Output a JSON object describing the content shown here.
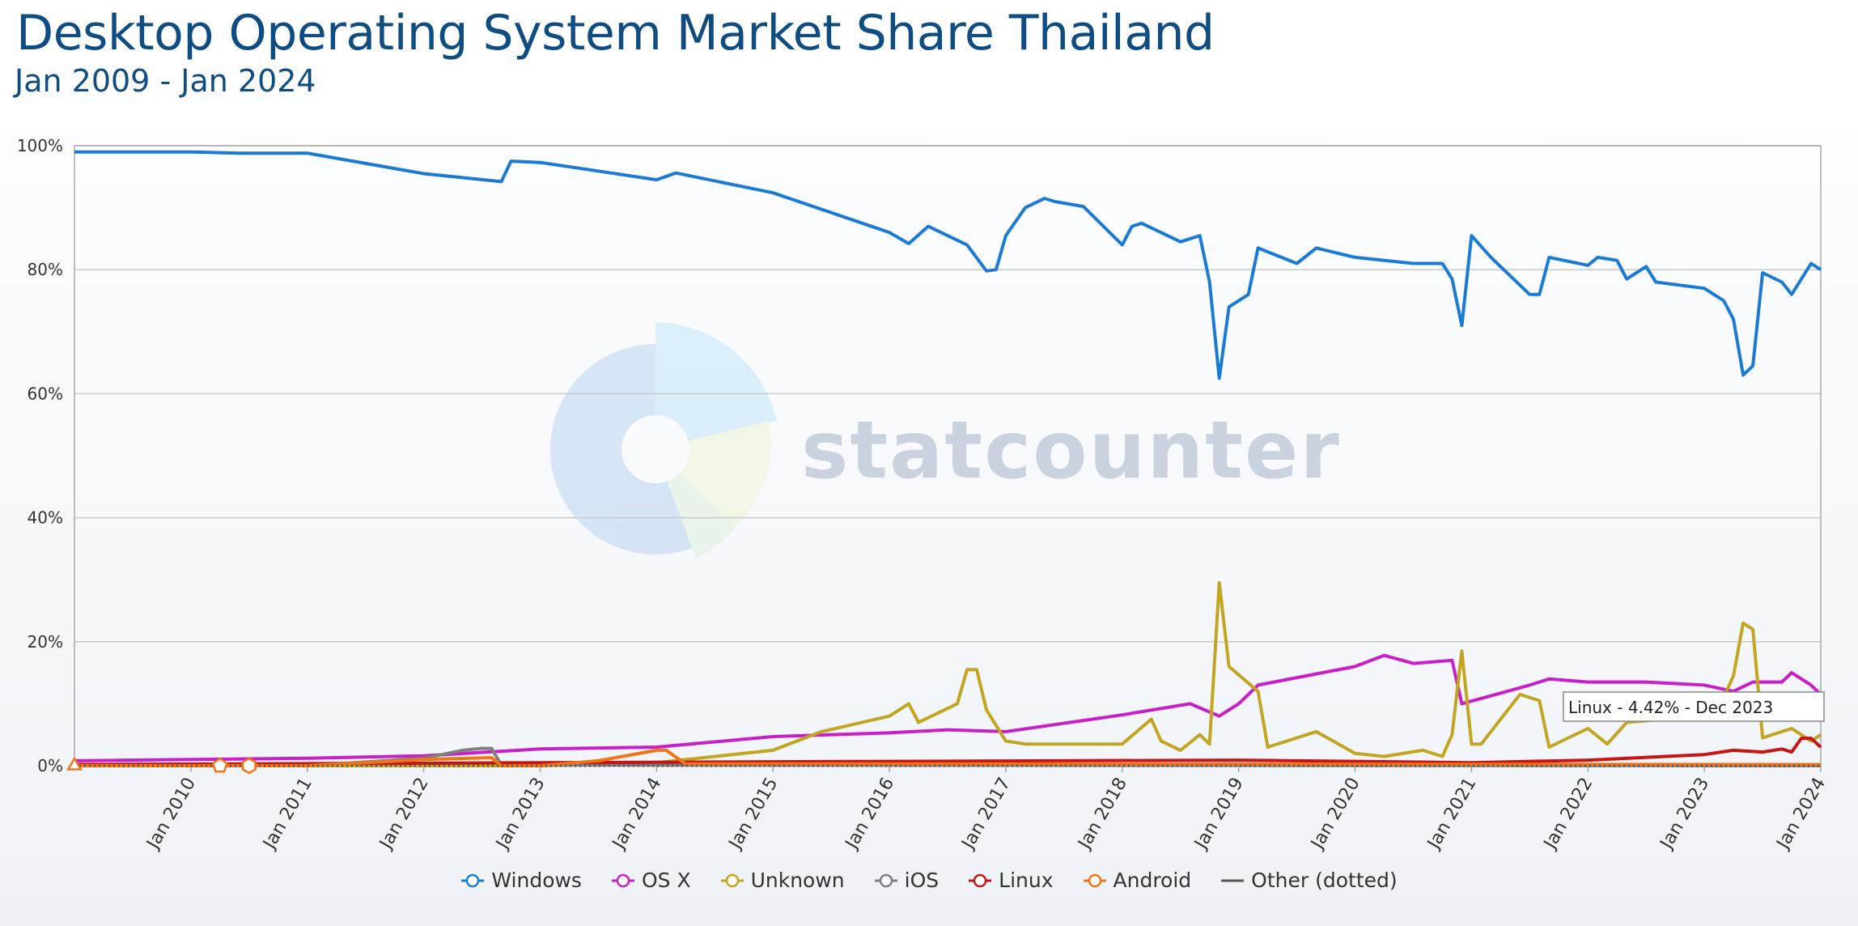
{
  "header": {
    "title": "Desktop Operating System Market Share Thailand",
    "subtitle": "Jan 2009 - Jan 2024"
  },
  "watermark": {
    "text": "statcounter"
  },
  "tooltip": {
    "text": "Linux - 4.42% - Dec 2023"
  },
  "legend": [
    {
      "name": "Windows",
      "color": "#1b7bd4"
    },
    {
      "name": "OS X",
      "color": "#c81fc8"
    },
    {
      "name": "Unknown",
      "color": "#c2a521"
    },
    {
      "name": "iOS",
      "color": "#7f7f7f"
    },
    {
      "name": "Linux",
      "color": "#c81414"
    },
    {
      "name": "Android",
      "color": "#f07518"
    },
    {
      "name": "Other (dotted)",
      "color": "#555555"
    }
  ],
  "chart_data": {
    "type": "line",
    "x_start": "Jan 2009",
    "x_end": "Jan 2024",
    "x_ticks": [
      "Jan 2010",
      "Jan 2011",
      "Jan 2012",
      "Jan 2013",
      "Jan 2014",
      "Jan 2015",
      "Jan 2016",
      "Jan 2017",
      "Jan 2018",
      "Jan 2019",
      "Jan 2020",
      "Jan 2021",
      "Jan 2022",
      "Jan 2023",
      "Jan 2024"
    ],
    "y_ticks": [
      "0%",
      "20%",
      "40%",
      "60%",
      "80%",
      "100%"
    ],
    "ylim": [
      0,
      100
    ],
    "grid": true,
    "series": [
      {
        "name": "Windows",
        "color": "#1b7bd4",
        "points": [
          [
            "Jan 2009",
            99
          ],
          [
            "Jan 2010",
            99
          ],
          [
            "Jun 2010",
            98.8
          ],
          [
            "Jan 2011",
            98.8
          ],
          [
            "Jan 2012",
            95.5
          ],
          [
            "Sep 2012",
            94.2
          ],
          [
            "Oct 2012",
            97.5
          ],
          [
            "Jan 2013",
            97.3
          ],
          [
            "Jan 2014",
            94.5
          ],
          [
            "Mar 2014",
            95.6
          ],
          [
            "Jan 2015",
            92.4
          ],
          [
            "Jan 2016",
            86
          ],
          [
            "Mar 2016",
            84.2
          ],
          [
            "May 2016",
            87
          ],
          [
            "Sep 2016",
            84
          ],
          [
            "Nov 2016",
            79.8
          ],
          [
            "Dec 2016",
            80
          ],
          [
            "Jan 2017",
            85.5
          ],
          [
            "Mar 2017",
            90
          ],
          [
            "May 2017",
            91.5
          ],
          [
            "Jun 2017",
            91
          ],
          [
            "Sep 2017",
            90.2
          ],
          [
            "Jan 2018",
            84
          ],
          [
            "Feb 2018",
            87
          ],
          [
            "Mar 2018",
            87.5
          ],
          [
            "Jul 2018",
            84.5
          ],
          [
            "Sep 2018",
            85.5
          ],
          [
            "Oct 2018",
            78
          ],
          [
            "Nov 2018",
            62.5
          ],
          [
            "Dec 2018",
            74
          ],
          [
            "Feb 2019",
            76
          ],
          [
            "Mar 2019",
            83.5
          ],
          [
            "Jul 2019",
            81
          ],
          [
            "Sep 2019",
            83.5
          ],
          [
            "Jan 2020",
            82
          ],
          [
            "Jul 2020",
            81
          ],
          [
            "Oct 2020",
            81
          ],
          [
            "Nov 2020",
            78.5
          ],
          [
            "Dec 2020",
            71
          ],
          [
            "Jan 2021",
            85.5
          ],
          [
            "Mar 2021",
            82
          ],
          [
            "Jul 2021",
            76
          ],
          [
            "Aug 2021",
            76
          ],
          [
            "Sep 2021",
            82
          ],
          [
            "Jan 2022",
            80.7
          ],
          [
            "Feb 2022",
            82
          ],
          [
            "Apr 2022",
            81.5
          ],
          [
            "May 2022",
            78.5
          ],
          [
            "Jul 2022",
            80.5
          ],
          [
            "Aug 2022",
            78
          ],
          [
            "Jan 2023",
            77
          ],
          [
            "Mar 2023",
            75
          ],
          [
            "Apr 2023",
            72
          ],
          [
            "May 2023",
            63
          ],
          [
            "Jun 2023",
            64.5
          ],
          [
            "Jul 2023",
            79.5
          ],
          [
            "Sep 2023",
            78
          ],
          [
            "Oct 2023",
            76
          ],
          [
            "Dec 2023",
            81
          ],
          [
            "Jan 2024",
            80
          ]
        ]
      },
      {
        "name": "OS X",
        "color": "#c81fc8",
        "points": [
          [
            "Jan 2009",
            0.8
          ],
          [
            "Jan 2010",
            1
          ],
          [
            "Jan 2011",
            1.2
          ],
          [
            "Jan 2012",
            1.6
          ],
          [
            "Jan 2013",
            2.7
          ],
          [
            "Jan 2014",
            3
          ],
          [
            "Jan 2015",
            4.7
          ],
          [
            "Jan 2016",
            5.3
          ],
          [
            "Jul 2016",
            5.8
          ],
          [
            "Jan 2017",
            5.5
          ],
          [
            "Jan 2018",
            8.2
          ],
          [
            "Aug 2018",
            10
          ],
          [
            "Nov 2018",
            8
          ],
          [
            "Jan 2019",
            10
          ],
          [
            "Mar 2019",
            13
          ],
          [
            "Jan 2020",
            16
          ],
          [
            "Apr 2020",
            17.8
          ],
          [
            "Jul 2020",
            16.5
          ],
          [
            "Nov 2020",
            17
          ],
          [
            "Dec 2020",
            10
          ],
          [
            "Jul 2021",
            13
          ],
          [
            "Sep 2021",
            14
          ],
          [
            "Jan 2022",
            13.5
          ],
          [
            "Jul 2022",
            13.5
          ],
          [
            "Jan 2023",
            13
          ],
          [
            "Apr 2023",
            12
          ],
          [
            "Jun 2023",
            13.5
          ],
          [
            "Sep 2023",
            13.5
          ],
          [
            "Oct 2023",
            15
          ],
          [
            "Dec 2023",
            13
          ],
          [
            "Jan 2024",
            11.5
          ]
        ]
      },
      {
        "name": "Unknown",
        "color": "#c2a521",
        "points": [
          [
            "Jan 2009",
            0
          ],
          [
            "Jan 2013",
            0
          ],
          [
            "Jan 2014",
            0.5
          ],
          [
            "Jan 2015",
            2.5
          ],
          [
            "Jun 2015",
            5.5
          ],
          [
            "Jan 2016",
            8
          ],
          [
            "Mar 2016",
            10
          ],
          [
            "Apr 2016",
            7
          ],
          [
            "Aug 2016",
            10
          ],
          [
            "Sep 2016",
            15.5
          ],
          [
            "Oct 2016",
            15.5
          ],
          [
            "Nov 2016",
            9
          ],
          [
            "Jan 2017",
            4
          ],
          [
            "Mar 2017",
            3.5
          ],
          [
            "Jan 2018",
            3.5
          ],
          [
            "Apr 2018",
            7.5
          ],
          [
            "May 2018",
            4
          ],
          [
            "Jul 2018",
            2.5
          ],
          [
            "Sep 2018",
            5
          ],
          [
            "Oct 2018",
            3.5
          ],
          [
            "Nov 2018",
            29.5
          ],
          [
            "Dec 2018",
            16
          ],
          [
            "Mar 2019",
            12
          ],
          [
            "Apr 2019",
            3
          ],
          [
            "Jun 2019",
            4
          ],
          [
            "Sep 2019",
            5.5
          ],
          [
            "Jan 2020",
            2
          ],
          [
            "Apr 2020",
            1.5
          ],
          [
            "Aug 2020",
            2.5
          ],
          [
            "Oct 2020",
            1.5
          ],
          [
            "Nov 2020",
            5
          ],
          [
            "Dec 2020",
            18.5
          ],
          [
            "Jan 2021",
            3.5
          ],
          [
            "Feb 2021",
            3.5
          ],
          [
            "Jun 2021",
            11.5
          ],
          [
            "Aug 2021",
            10.5
          ],
          [
            "Sep 2021",
            3
          ],
          [
            "Jan 2022",
            6
          ],
          [
            "Mar 2022",
            3.5
          ],
          [
            "May 2022",
            7
          ],
          [
            "Jan 2023",
            8
          ],
          [
            "Mar 2023",
            11
          ],
          [
            "Apr 2023",
            14.5
          ],
          [
            "May 2023",
            23
          ],
          [
            "Jun 2023",
            22
          ],
          [
            "Jul 2023",
            4.5
          ],
          [
            "Oct 2023",
            6
          ],
          [
            "Dec 2023",
            4
          ],
          [
            "Jan 2024",
            5
          ]
        ]
      },
      {
        "name": "iOS",
        "color": "#7f7f7f",
        "points": [
          [
            "Jan 2009",
            0
          ],
          [
            "Jan 2011",
            0
          ],
          [
            "Jan 2012",
            1.2
          ],
          [
            "May 2012",
            2.5
          ],
          [
            "Jul 2012",
            2.8
          ],
          [
            "Aug 2012",
            2.8
          ],
          [
            "Sep 2012",
            0.1
          ],
          [
            "Jan 2024",
            0
          ]
        ]
      },
      {
        "name": "Linux",
        "color": "#c81414",
        "points": [
          [
            "Jan 2009",
            0.2
          ],
          [
            "Jan 2012",
            0.4
          ],
          [
            "Jan 2013",
            0.5
          ],
          [
            "Jan 2016",
            0.7
          ],
          [
            "Jan 2019",
            0.9
          ],
          [
            "Jan 2020",
            0.7
          ],
          [
            "Jan 2021",
            0.5
          ],
          [
            "Jan 2022",
            0.9
          ],
          [
            "Jan 2023",
            1.8
          ],
          [
            "Apr 2023",
            2.5
          ],
          [
            "Jul 2023",
            2.2
          ],
          [
            "Sep 2023",
            2.7
          ],
          [
            "Oct 2023",
            2.2
          ],
          [
            "Nov 2023",
            4.42
          ],
          [
            "Dec 2023",
            4.42
          ],
          [
            "Jan 2024",
            3
          ]
        ]
      },
      {
        "name": "Android",
        "color": "#f07518",
        "points": [
          [
            "Jan 2009",
            0
          ],
          [
            "Jan 2011",
            0
          ],
          [
            "Jan 2012",
            1
          ],
          [
            "Aug 2012",
            1.3
          ],
          [
            "Sep 2012",
            0
          ],
          [
            "Jan 2013",
            0
          ],
          [
            "Jul 2013",
            0.8
          ],
          [
            "Jan 2014",
            2.5
          ],
          [
            "Feb 2014",
            2.5
          ],
          [
            "Apr 2014",
            0.3
          ],
          [
            "Jan 2015",
            0.3
          ],
          [
            "Jan 2024",
            0.2
          ]
        ]
      },
      {
        "name": "Other (dotted)",
        "color": "#555555",
        "dotted": true,
        "points": [
          [
            "Jan 2009",
            0
          ],
          [
            "Jan 2024",
            0
          ]
        ]
      }
    ],
    "markers": [
      {
        "series": "Android",
        "x": "Jan 2009",
        "y": 0,
        "shape": "triangle"
      },
      {
        "series": "Android",
        "x": "Apr 2010",
        "y": 0,
        "shape": "pentagon"
      },
      {
        "series": "Android",
        "x": "Jul 2010",
        "y": 0,
        "shape": "hexagon"
      }
    ]
  }
}
